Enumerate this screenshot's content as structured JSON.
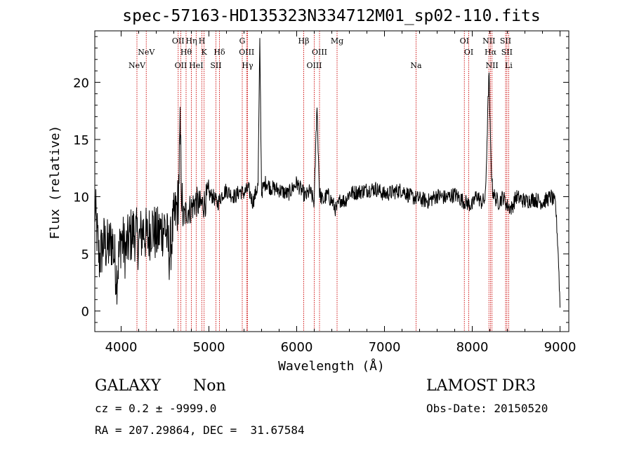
{
  "chart_data": {
    "type": "line",
    "title": "spec-57163-HD135323N334712M01_sp02-110.fits",
    "xlabel": "Wavelength (Å)",
    "ylabel": "Flux (relative)",
    "xlim": [
      3700,
      9100
    ],
    "ylim": [
      -1.8,
      24.5
    ],
    "xticks": [
      4000,
      5000,
      6000,
      7000,
      8000,
      9000
    ],
    "yticks": [
      0,
      5,
      10,
      15,
      20
    ],
    "series": [
      {
        "name": "flux",
        "x": [
          3700,
          3750,
          3800,
          3850,
          3900,
          3950,
          4000,
          4050,
          4100,
          4150,
          4200,
          4250,
          4300,
          4350,
          4400,
          4450,
          4500,
          4550,
          4600,
          4650,
          4672,
          4700,
          4750,
          4800,
          4850,
          4900,
          4950,
          5000,
          5050,
          5100,
          5150,
          5200,
          5250,
          5300,
          5350,
          5400,
          5450,
          5500,
          5560,
          5580,
          5600,
          5650,
          5700,
          5800,
          5900,
          6000,
          6100,
          6150,
          6200,
          6230,
          6260,
          6300,
          6350,
          6400,
          6450,
          6500,
          6550,
          6600,
          6700,
          6800,
          6900,
          7000,
          7100,
          7200,
          7300,
          7400,
          7500,
          7600,
          7700,
          7800,
          7900,
          8000,
          8050,
          8100,
          8150,
          8190,
          8210,
          8230,
          8260,
          8300,
          8350,
          8400,
          8450,
          8500,
          8600,
          8700,
          8800,
          8900,
          8950,
          8980,
          9000
        ],
        "values": [
          9.2,
          4.5,
          6.0,
          5.5,
          6.2,
          3.0,
          6.5,
          5.2,
          6.5,
          7.0,
          6.0,
          7.2,
          6.3,
          7.5,
          6.5,
          7.0,
          7.5,
          5.0,
          7.8,
          9.5,
          15.5,
          8.0,
          8.8,
          9.0,
          9.6,
          9.2,
          9.5,
          10.2,
          10.0,
          9.4,
          10.2,
          10.6,
          10.2,
          10.0,
          10.5,
          10.3,
          10.7,
          9.5,
          11.0,
          23.5,
          10.4,
          11.3,
          10.8,
          10.6,
          10.2,
          11.2,
          10.0,
          10.5,
          9.5,
          18.2,
          10.3,
          9.6,
          10.2,
          9.6,
          8.8,
          9.8,
          9.6,
          10.3,
          10.4,
          10.6,
          10.7,
          10.2,
          10.4,
          10.6,
          10.0,
          9.8,
          9.6,
          10.1,
          9.9,
          10.2,
          9.6,
          9.2,
          10.2,
          9.5,
          9.8,
          21.0,
          14.0,
          10.6,
          9.9,
          9.5,
          10.0,
          9.2,
          9.0,
          10.0,
          9.6,
          9.8,
          9.5,
          10.0,
          9.3,
          5.0,
          0.5
        ]
      }
    ],
    "emission_lines": [
      {
        "label": "NeV",
        "wavelength": 4180,
        "row": 3
      },
      {
        "label": "NeV",
        "wavelength": 4286,
        "row": 2
      },
      {
        "label": "OII",
        "wavelength": 4650,
        "row": 1
      },
      {
        "label": "OII",
        "wavelength": 4680,
        "row": 3
      },
      {
        "label": "Hθ",
        "wavelength": 4740,
        "row": 2
      },
      {
        "label": "Hη",
        "wavelength": 4800,
        "row": 1
      },
      {
        "label": "HeI",
        "wavelength": 4855,
        "row": 3
      },
      {
        "label": "H",
        "wavelength": 4920,
        "row": 1
      },
      {
        "label": "K",
        "wavelength": 4945,
        "row": 2
      },
      {
        "label": "SII",
        "wavelength": 5080,
        "row": 3
      },
      {
        "label": "Hδ",
        "wavelength": 5120,
        "row": 2
      },
      {
        "label": "G",
        "wavelength": 5380,
        "row": 1
      },
      {
        "label": "OIII",
        "wavelength": 5430,
        "row": 2
      },
      {
        "label": "Hγ",
        "wavelength": 5440,
        "row": 3
      },
      {
        "label": "Hβ",
        "wavelength": 6080,
        "row": 1
      },
      {
        "label": "OIII",
        "wavelength": 6200,
        "row": 3
      },
      {
        "label": "OIII",
        "wavelength": 6260,
        "row": 2
      },
      {
        "label": "Mg",
        "wavelength": 6460,
        "row": 1
      },
      {
        "label": "Na",
        "wavelength": 7360,
        "row": 3
      },
      {
        "label": "OI",
        "wavelength": 7910,
        "row": 1
      },
      {
        "label": "OI",
        "wavelength": 7960,
        "row": 2
      },
      {
        "label": "NII",
        "wavelength": 8190,
        "row": 1
      },
      {
        "label": "Hα",
        "wavelength": 8208,
        "row": 2
      },
      {
        "label": "NII",
        "wavelength": 8225,
        "row": 3
      },
      {
        "label": "SII",
        "wavelength": 8380,
        "row": 1
      },
      {
        "label": "SII",
        "wavelength": 8395,
        "row": 2
      },
      {
        "label": "Li",
        "wavelength": 8415,
        "row": 3
      }
    ],
    "line_color": "#000000",
    "marker_color": "#cc0000"
  },
  "info": {
    "classification": "GALAXY",
    "subclass": "Non",
    "survey": "LAMOST DR3",
    "cz": "cz = 0.2 ± -9999.0",
    "obs_date": "Obs-Date: 20150520",
    "coords": "RA = 207.29864, DEC =  31.67584"
  }
}
